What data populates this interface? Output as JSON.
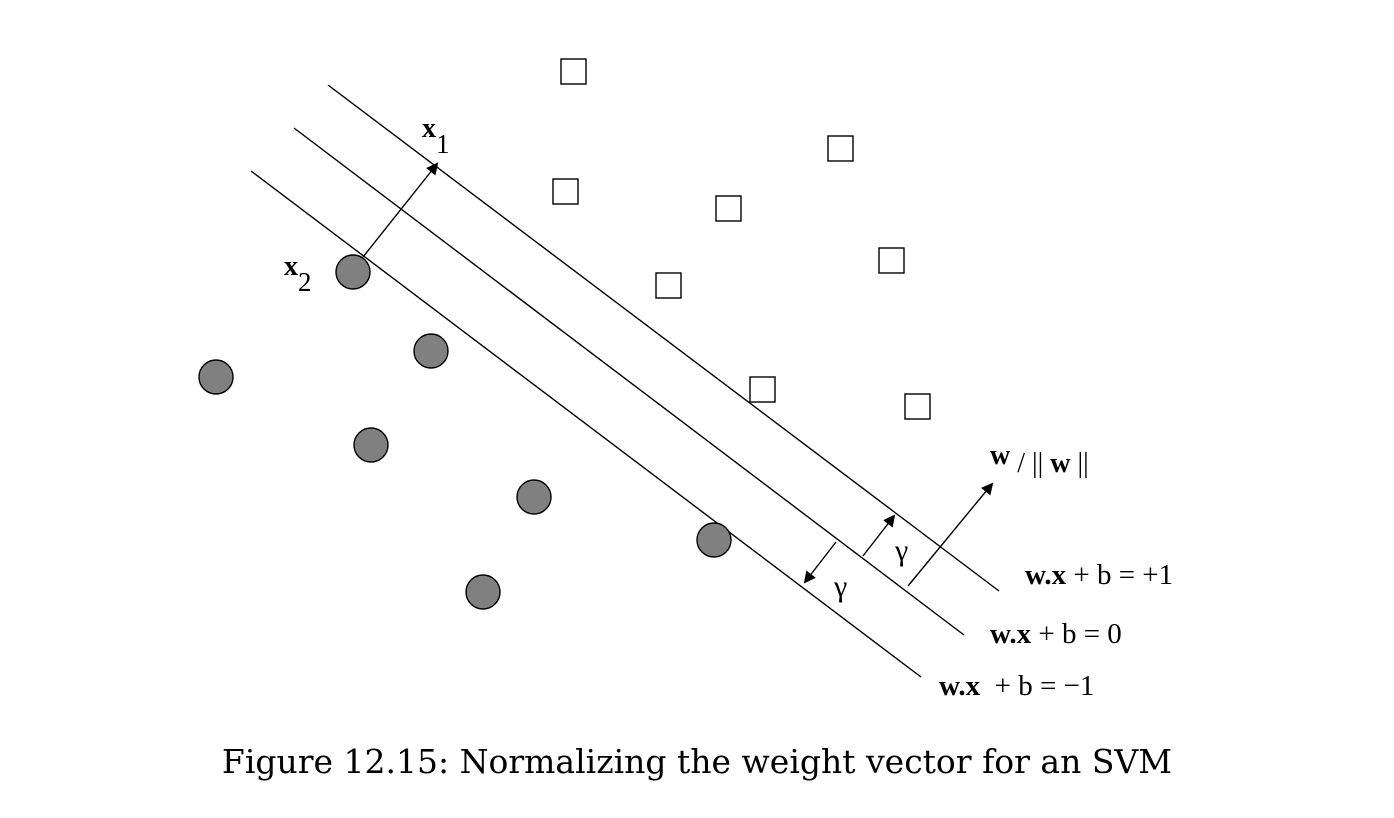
{
  "labels": {
    "x1_base": "x",
    "x1_sub": "1",
    "x2_base": "x",
    "x2_sub": "2",
    "w_bold": "w",
    "w_norm_mid": " / || ",
    "w_norm_bold": "w",
    "w_norm_end": " ||",
    "gamma": "γ"
  },
  "lines": {
    "plus_bold": "w.x",
    "plus_rest": " + b = +1",
    "zero_bold": "w.x",
    "zero_rest": " + b = 0",
    "minus_bold": "w.x",
    "minus_rest": "  + b = −1"
  },
  "caption": "Figure 12.15: Normalizing the weight vector for an SVM"
}
